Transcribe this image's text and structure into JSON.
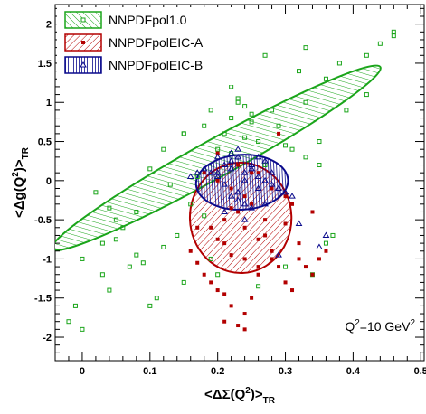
{
  "chart_data": {
    "type": "scatter",
    "xlabel": "<ΔΣ(Q²)>TR",
    "ylabel": "<Δg(Q²)>TR",
    "xlim": [
      -0.04,
      0.505
    ],
    "ylim": [
      -2.3,
      2.25
    ],
    "xticks": [
      "0",
      "0.1",
      "0.2",
      "0.3",
      "0.4",
      "0.5"
    ],
    "yticks": [
      "-2",
      "-1.5",
      "-1",
      "-0.5",
      "0",
      "0.5",
      "1",
      "1.5",
      "2"
    ],
    "annotation": "Q²=10 GeV²",
    "legend_position": "top-left",
    "series": [
      {
        "name": "NNPDFpol1.0",
        "color": "#1aa51a",
        "marker": "open-square",
        "hatch": "diagonal-down",
        "ellipse": {
          "cx": 0.198,
          "cy": 0.29,
          "rx": 0.277,
          "ry": 0.24,
          "tilt_deg": 29
        },
        "x": [
          0.46,
          0.44,
          0.46,
          0.42,
          0.38,
          0.36,
          0.33,
          0.32,
          0.42,
          0.39,
          0.33,
          0.27,
          0.25,
          0.22,
          0.18,
          0.15,
          0.15,
          0.12,
          0.1,
          0.08,
          0.05,
          0.03,
          0.0,
          -0.01,
          -0.02,
          0.0,
          0.04,
          0.1,
          0.07,
          0.12,
          0.3,
          0.34,
          0.24,
          0.2,
          0.22,
          0.26,
          0.16,
          0.18,
          0.14,
          0.06,
          0.17,
          0.21,
          0.35,
          0.29,
          0.31,
          0.27,
          0.33,
          0.13,
          0.28,
          0.24,
          0.19,
          0.23,
          0.09,
          0.37,
          0.36,
          0.2,
          0.26,
          0.15,
          0.11,
          0.08,
          0.03,
          0.05,
          0.35,
          0.3,
          0.23,
          0.25,
          0.04,
          0.02,
          0.22,
          0.19
        ],
        "y": [
          1.9,
          1.75,
          1.85,
          1.6,
          1.5,
          1.3,
          1.7,
          1.4,
          1.1,
          0.9,
          1.0,
          1.6,
          0.85,
          0.8,
          0.7,
          0.6,
          0.6,
          0.4,
          0.15,
          -0.4,
          -0.5,
          -0.8,
          -1.0,
          -1.6,
          -1.8,
          -1.9,
          -1.4,
          -1.6,
          -1.1,
          -0.85,
          -1.1,
          -1.2,
          0.55,
          0.4,
          0.35,
          0.5,
          -0.3,
          -0.45,
          -0.7,
          -0.6,
          0.05,
          0.6,
          0.5,
          0.7,
          0.4,
          0.2,
          0.3,
          -0.05,
          0.9,
          0.95,
          0.9,
          1.0,
          -1.05,
          -0.7,
          -0.8,
          -1.2,
          -1.35,
          -1.3,
          -1.5,
          -0.95,
          -1.2,
          -0.75,
          0.2,
          0.45,
          1.05,
          0.75,
          -0.35,
          -0.15,
          1.2,
          -1.0
        ]
      },
      {
        "name": "NNPDFpolEIC-A",
        "color": "#b30000",
        "marker": "filled-square",
        "hatch": "diagonal-up",
        "ellipse": {
          "cx": 0.234,
          "cy": -0.475,
          "rx": 0.075,
          "ry": 0.705,
          "tilt_deg": 2
        },
        "x": [
          0.2,
          0.22,
          0.24,
          0.26,
          0.25,
          0.23,
          0.21,
          0.19,
          0.27,
          0.28,
          0.29,
          0.3,
          0.31,
          0.32,
          0.33,
          0.34,
          0.35,
          0.36,
          0.34,
          0.31,
          0.3,
          0.28,
          0.29,
          0.27,
          0.26,
          0.25,
          0.24,
          0.23,
          0.22,
          0.21,
          0.2,
          0.19,
          0.18,
          0.17,
          0.16,
          0.2,
          0.21,
          0.22,
          0.24,
          0.26,
          0.28,
          0.25,
          0.23,
          0.3,
          0.32,
          0.2,
          0.18,
          0.22,
          0.24,
          0.17,
          0.26,
          0.24,
          0.21
        ],
        "y": [
          0.0,
          -0.1,
          -0.2,
          0.1,
          -0.3,
          -0.4,
          -0.5,
          -0.6,
          -0.7,
          -0.9,
          -1.1,
          -1.3,
          -1.4,
          -0.8,
          -1.1,
          -1.2,
          -1.0,
          -0.9,
          -0.4,
          -0.3,
          -0.2,
          -0.1,
          0.6,
          -0.5,
          -1.2,
          -1.5,
          -1.7,
          -1.85,
          -1.6,
          -1.45,
          -1.4,
          -1.3,
          -1.2,
          -1.05,
          -0.9,
          -0.75,
          -0.8,
          -0.95,
          -1.0,
          -1.1,
          -1.0,
          0.1,
          0.2,
          -0.55,
          -1.0,
          0.35,
          0.1,
          -0.35,
          -0.6,
          -0.6,
          -0.75,
          -1.9,
          -1.8
        ]
      },
      {
        "name": "NNPDFpolEIC-B",
        "color": "#0a0a8c",
        "marker": "open-triangle",
        "hatch": "vertical",
        "ellipse": {
          "cx": 0.236,
          "cy": -0.02,
          "rx": 0.068,
          "ry": 0.35,
          "tilt_deg": 3
        },
        "x": [
          0.2,
          0.21,
          0.22,
          0.23,
          0.24,
          0.25,
          0.26,
          0.27,
          0.28,
          0.29,
          0.3,
          0.22,
          0.23,
          0.24,
          0.25,
          0.21,
          0.2,
          0.19,
          0.18,
          0.17,
          0.16,
          0.27,
          0.26,
          0.28,
          0.31,
          0.32,
          0.36,
          0.35,
          0.29,
          0.24,
          0.23,
          0.22,
          0.25,
          0.26,
          0.21,
          0.2,
          0.24,
          0.22,
          0.27,
          0.23
        ],
        "y": [
          0.1,
          0.2,
          0.25,
          0.3,
          0.1,
          0.15,
          0.05,
          0.0,
          -0.05,
          -0.1,
          -0.15,
          -0.2,
          -0.25,
          -0.3,
          -0.35,
          -0.4,
          0.05,
          0.1,
          0.15,
          0.1,
          0.05,
          0.25,
          0.3,
          0.1,
          -0.2,
          -0.55,
          -0.7,
          -0.85,
          -0.95,
          -0.5,
          0.4,
          0.35,
          0.2,
          -0.1,
          -0.05,
          0.3,
          0.0,
          0.15,
          -0.3,
          -0.15
        ]
      }
    ]
  }
}
